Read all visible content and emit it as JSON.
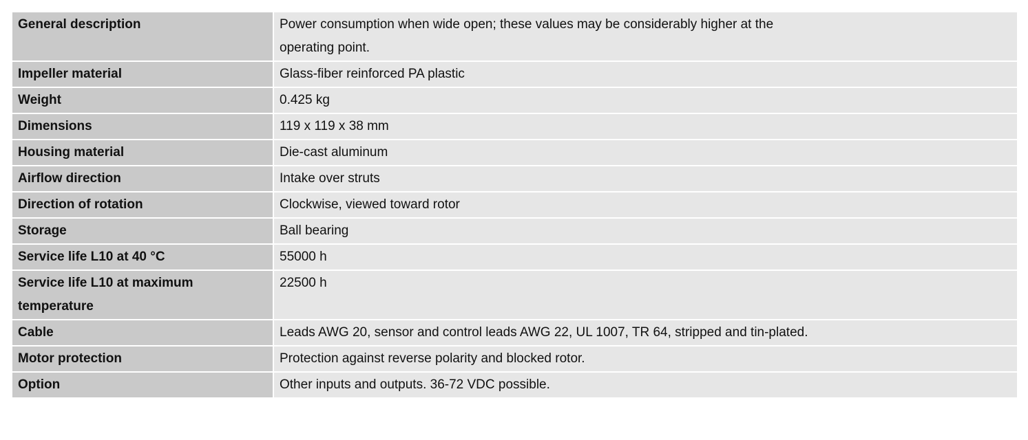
{
  "table": {
    "rows": [
      [
        "General description",
        "Power consumption when wide open; these values may be considerably higher at the operating point."
      ],
      [
        "Impeller material",
        "Glass-fiber reinforced PA plastic"
      ],
      [
        "Weight",
        "0.425 kg"
      ],
      [
        "Dimensions",
        "119 x 119 x 38 mm"
      ],
      [
        "Housing material",
        "Die-cast aluminum"
      ],
      [
        "Airflow direction",
        "Intake over struts"
      ],
      [
        "Direction of rotation",
        "Clockwise, viewed toward rotor"
      ],
      [
        "Storage",
        "Ball bearing"
      ],
      [
        "Service life L10 at 40 °C",
        "55000 h"
      ],
      [
        "Service life L10 at maximum temperature",
        "22500 h"
      ],
      [
        "Cable",
        "Leads AWG 20, sensor and control leads AWG 22, UL 1007, TR 64, stripped and tin-plated."
      ],
      [
        "Motor protection",
        "Protection against reverse polarity and blocked rotor."
      ],
      [
        "Option",
        "Other inputs and outputs. 36-72 VDC possible."
      ]
    ]
  }
}
